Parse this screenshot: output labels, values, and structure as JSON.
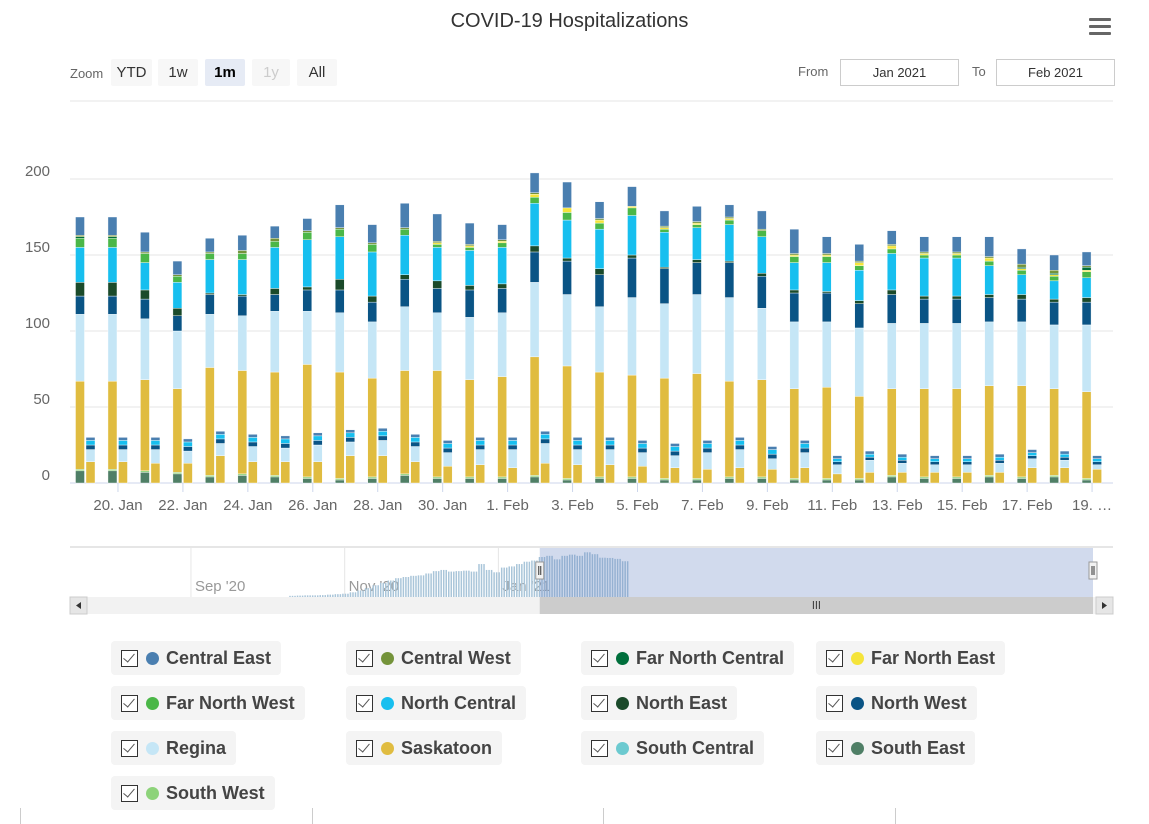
{
  "title": "COVID-19 Hospitalizations",
  "menu_icon": "hamburger-menu-icon",
  "range_selector": {
    "zoom_label": "Zoom",
    "buttons": [
      {
        "label": "YTD",
        "state": "normal"
      },
      {
        "label": "1w",
        "state": "normal"
      },
      {
        "label": "1m",
        "state": "selected"
      },
      {
        "label": "1y",
        "state": "disabled"
      },
      {
        "label": "All",
        "state": "normal"
      }
    ],
    "from_label": "From",
    "from_value": "Jan 2021",
    "to_label": "To",
    "to_value": "Feb 2021"
  },
  "navigator": {
    "labels": [
      "Sep '20",
      "Nov '20",
      "Jan '21"
    ],
    "series": [
      [
        "2020-10-10",
        5
      ],
      [
        "2020-10-13",
        6
      ],
      [
        "2020-10-16",
        7
      ],
      [
        "2020-10-19",
        7
      ],
      [
        "2020-10-22",
        8
      ],
      [
        "2020-10-25",
        10
      ],
      [
        "2020-10-28",
        12
      ],
      [
        "2020-10-31",
        14
      ],
      [
        "2020-11-03",
        20
      ],
      [
        "2020-11-06",
        28
      ],
      [
        "2020-11-09",
        38
      ],
      [
        "2020-11-12",
        50
      ],
      [
        "2020-11-15",
        60
      ],
      [
        "2020-11-18",
        70
      ],
      [
        "2020-11-21",
        80
      ],
      [
        "2020-11-24",
        85
      ],
      [
        "2020-11-27",
        90
      ],
      [
        "2020-11-30",
        92
      ],
      [
        "2020-12-03",
        100
      ],
      [
        "2020-12-06",
        110
      ],
      [
        "2020-12-09",
        115
      ],
      [
        "2020-12-12",
        108
      ],
      [
        "2020-12-15",
        110
      ],
      [
        "2020-12-18",
        112
      ],
      [
        "2020-12-21",
        108
      ],
      [
        "2020-12-24",
        140
      ],
      [
        "2020-12-27",
        115
      ],
      [
        "2020-12-30",
        105
      ],
      [
        "2021-01-02",
        125
      ],
      [
        "2021-01-05",
        130
      ],
      [
        "2021-01-08",
        140
      ],
      [
        "2021-01-11",
        150
      ],
      [
        "2021-01-14",
        155
      ],
      [
        "2021-01-17",
        170
      ],
      [
        "2021-01-20",
        175
      ],
      [
        "2021-01-23",
        160
      ],
      [
        "2021-01-26",
        175
      ],
      [
        "2021-01-29",
        180
      ],
      [
        "2021-02-01",
        175
      ],
      [
        "2021-02-04",
        190
      ],
      [
        "2021-02-07",
        182
      ],
      [
        "2021-02-10",
        167
      ],
      [
        "2021-02-13",
        166
      ],
      [
        "2021-02-16",
        162
      ],
      [
        "2021-02-19",
        152
      ]
    ],
    "selected_range": [
      "2021-01-19",
      "2021-02-19"
    ]
  },
  "chart_data": {
    "type": "bar",
    "stacked": true,
    "title": "COVID-19 Hospitalizations",
    "xlabel": "",
    "ylabel": "",
    "ylim": [
      0,
      210
    ],
    "yticks": [
      0,
      50,
      100,
      150,
      200
    ],
    "grid": true,
    "legend_placement": "bottom",
    "categories": [
      "19 Jan",
      "20 Jan",
      "21 Jan",
      "22 Jan",
      "23 Jan",
      "24 Jan",
      "25 Jan",
      "26 Jan",
      "27 Jan",
      "28 Jan",
      "29 Jan",
      "30 Jan",
      "31 Jan",
      "1 Feb",
      "2 Feb",
      "3 Feb",
      "4 Feb",
      "5 Feb",
      "6 Feb",
      "7 Feb",
      "8 Feb",
      "9 Feb",
      "10 Feb",
      "11 Feb",
      "12 Feb",
      "13 Feb",
      "14 Feb",
      "15 Feb",
      "16 Feb",
      "17 Feb",
      "18 Feb",
      "19 Feb"
    ],
    "xtick_labels": [
      "20. Jan",
      "22. Jan",
      "24. Jan",
      "26. Jan",
      "28. Jan",
      "30. Jan",
      "1. Feb",
      "3. Feb",
      "5. Feb",
      "7. Feb",
      "9. Feb",
      "11. Feb",
      "13. Feb",
      "15. Feb",
      "17. Feb",
      "19. …"
    ],
    "series": [
      {
        "name": "South East",
        "color": "#4f7f66",
        "values": [
          8,
          8,
          7,
          6,
          4,
          5,
          4,
          3,
          2,
          3,
          5,
          3,
          3,
          3,
          4,
          2,
          3,
          3,
          2,
          2,
          3,
          3,
          2,
          2,
          2,
          4,
          3,
          3,
          4,
          3,
          4,
          2
        ]
      },
      {
        "name": "South West",
        "color": "#8dd37a",
        "values": [
          1,
          1,
          1,
          1,
          1,
          1,
          1,
          1,
          1,
          1,
          1,
          1,
          1,
          1,
          1,
          1,
          1,
          1,
          1,
          1,
          1,
          1,
          1,
          1,
          1,
          1,
          1,
          1,
          1,
          1,
          1,
          1
        ]
      },
      {
        "name": "South Central",
        "color": "#6ccad0",
        "values": [
          0,
          0,
          0,
          0,
          0,
          0,
          0,
          0,
          0,
          0,
          0,
          0,
          0,
          0,
          0,
          0,
          0,
          0,
          0,
          0,
          0,
          0,
          0,
          0,
          0,
          0,
          0,
          0,
          0,
          0,
          0,
          0
        ]
      },
      {
        "name": "Saskatoon",
        "color": "#e0bc40",
        "values": [
          58,
          58,
          60,
          55,
          71,
          68,
          68,
          74,
          70,
          65,
          68,
          70,
          64,
          66,
          78,
          74,
          69,
          67,
          66,
          69,
          63,
          64,
          59,
          60,
          54,
          57,
          58,
          58,
          59,
          60,
          57,
          57
        ],
        "secondary_values": [
          14,
          14,
          13,
          13,
          18,
          14,
          14,
          14,
          18,
          18,
          14,
          11,
          12,
          10,
          13,
          12,
          12,
          11,
          10,
          9,
          10,
          9,
          10,
          6,
          7,
          7,
          7,
          7,
          7,
          10,
          10,
          9
        ]
      },
      {
        "name": "Regina",
        "color": "#c5e6f6",
        "values": [
          44,
          44,
          40,
          38,
          35,
          36,
          40,
          35,
          39,
          37,
          42,
          38,
          41,
          42,
          49,
          47,
          43,
          51,
          49,
          52,
          55,
          47,
          44,
          43,
          45,
          43,
          43,
          43,
          42,
          42,
          42,
          44
        ],
        "secondary_values": [
          8,
          8,
          9,
          8,
          8,
          10,
          9,
          11,
          9,
          10,
          10,
          9,
          10,
          12,
          13,
          10,
          10,
          9,
          8,
          11,
          12,
          7,
          10,
          6,
          8,
          6,
          5,
          5,
          6,
          6,
          5,
          3
        ]
      },
      {
        "name": "North West",
        "color": "#0a5485",
        "values": [
          12,
          12,
          13,
          10,
          13,
          13,
          11,
          14,
          15,
          13,
          18,
          16,
          18,
          16,
          20,
          22,
          21,
          26,
          23,
          21,
          23,
          21,
          19,
          19,
          16,
          19,
          16,
          16,
          16,
          15,
          15,
          15
        ],
        "secondary_values": [
          3,
          3,
          3,
          3,
          3,
          3,
          3,
          3,
          3,
          3,
          3,
          3,
          3,
          3,
          3,
          3,
          3,
          3,
          3,
          3,
          3,
          3,
          3,
          2,
          2,
          2,
          2,
          2,
          2,
          2,
          2,
          2
        ]
      },
      {
        "name": "North East",
        "color": "#1a4a2a",
        "values": [
          9,
          9,
          6,
          5,
          1,
          1,
          4,
          2,
          7,
          4,
          3,
          5,
          3,
          3,
          4,
          2,
          4,
          2,
          1,
          2,
          1,
          2,
          2,
          1,
          2,
          3,
          2,
          2,
          2,
          3,
          2,
          3
        ]
      },
      {
        "name": "North Central",
        "color": "#17bfef",
        "values": [
          23,
          23,
          18,
          17,
          22,
          23,
          27,
          31,
          28,
          29,
          26,
          22,
          23,
          24,
          28,
          25,
          26,
          26,
          23,
          21,
          24,
          24,
          18,
          19,
          20,
          24,
          25,
          25,
          19,
          13,
          12,
          13
        ],
        "secondary_values": [
          3,
          3,
          3,
          3,
          3,
          3,
          3,
          3,
          3,
          3,
          3,
          3,
          3,
          3,
          3,
          3,
          3,
          3,
          3,
          3,
          3,
          3,
          3,
          2,
          2,
          2,
          2,
          2,
          2,
          2,
          2,
          2
        ]
      },
      {
        "name": "Far North West",
        "color": "#4bb748",
        "values": [
          6,
          6,
          6,
          4,
          4,
          4,
          4,
          5,
          5,
          5,
          4,
          2,
          2,
          3,
          4,
          5,
          4,
          5,
          2,
          2,
          3,
          4,
          4,
          4,
          3,
          3,
          2,
          2,
          3,
          3,
          3,
          4
        ]
      },
      {
        "name": "Far North East",
        "color": "#f5e43a",
        "values": [
          0,
          0,
          0,
          0,
          0,
          0,
          0,
          0,
          0,
          0,
          0,
          1,
          1,
          1,
          2,
          3,
          2,
          1,
          1,
          1,
          1,
          0,
          1,
          1,
          2,
          2,
          1,
          1,
          2,
          1,
          1,
          1
        ]
      },
      {
        "name": "Far North Central",
        "color": "#006f3c",
        "values": [
          1,
          1,
          0,
          0,
          0,
          0,
          0,
          0,
          0,
          0,
          0,
          0,
          0,
          0,
          0,
          0,
          0,
          0,
          0,
          0,
          0,
          0,
          0,
          0,
          0,
          0,
          0,
          0,
          0,
          1,
          1,
          2
        ]
      },
      {
        "name": "Central West",
        "color": "#74933a",
        "values": [
          1,
          1,
          1,
          1,
          1,
          2,
          2,
          1,
          1,
          1,
          1,
          1,
          1,
          1,
          1,
          0,
          1,
          0,
          1,
          1,
          1,
          1,
          1,
          1,
          1,
          1,
          1,
          1,
          1,
          2,
          2,
          1
        ]
      },
      {
        "name": "Central East",
        "color": "#4a7fb0",
        "values": [
          12,
          12,
          13,
          9,
          9,
          10,
          8,
          8,
          15,
          12,
          16,
          18,
          14,
          10,
          13,
          17,
          11,
          13,
          10,
          10,
          8,
          12,
          16,
          11,
          11,
          9,
          10,
          10,
          13,
          10,
          10,
          9
        ],
        "secondary_values": [
          2,
          2,
          2,
          2,
          2,
          2,
          2,
          2,
          2,
          2,
          2,
          2,
          2,
          2,
          2,
          2,
          2,
          2,
          2,
          2,
          2,
          2,
          2,
          2,
          2,
          2,
          2,
          2,
          2,
          2,
          2,
          2
        ]
      }
    ]
  },
  "legend": {
    "order": [
      "Central East",
      "Central West",
      "Far North Central",
      "Far North East",
      "Far North West",
      "North Central",
      "North East",
      "North West",
      "Regina",
      "Saskatoon",
      "South Central",
      "South East",
      "South West"
    ],
    "checked": true
  }
}
